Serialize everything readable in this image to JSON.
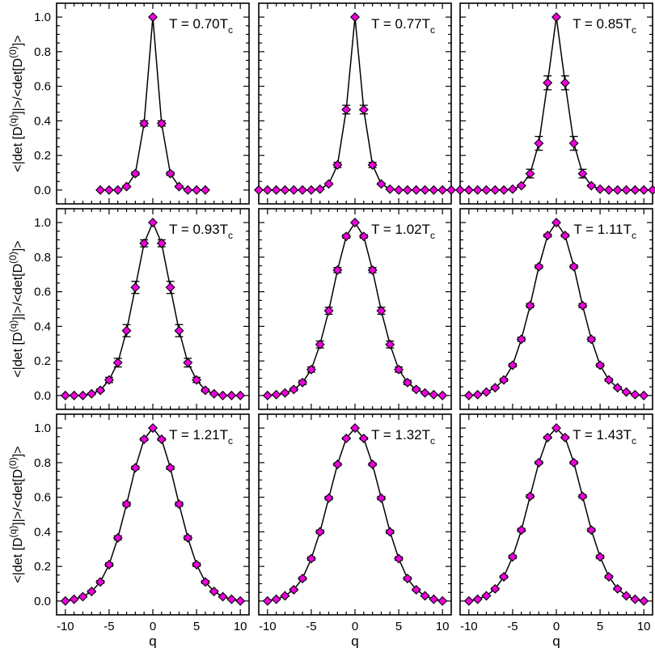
{
  "figure": {
    "xlabel": "q",
    "ylabel_parts": [
      "<|det [D",
      "(q)",
      "]|>/<det[D",
      "(0)",
      "]>"
    ]
  },
  "chart_data": [
    {
      "type": "line",
      "title_main": "T = 0.70T",
      "title_sub": "c",
      "xlim": [
        -11,
        11
      ],
      "ylim": [
        -0.08,
        1.08
      ],
      "x": [
        -6,
        -5,
        -4,
        -3,
        -2,
        -1,
        0,
        1,
        2,
        3,
        4,
        5,
        6
      ],
      "y": [
        0.0,
        0.0,
        0.0,
        0.02,
        0.095,
        0.385,
        1.0,
        0.385,
        0.095,
        0.02,
        0.0,
        0.0,
        0.0
      ],
      "err": [
        0.0,
        0.0,
        0.0,
        0.005,
        0.01,
        0.015,
        0.0,
        0.015,
        0.01,
        0.005,
        0.0,
        0.0,
        0.0
      ]
    },
    {
      "type": "line",
      "title_main": "T = 0.77T",
      "title_sub": "c",
      "xlim": [
        -11,
        11
      ],
      "ylim": [
        -0.08,
        1.08
      ],
      "x": [
        -11,
        -10,
        -9,
        -8,
        -7,
        -6,
        -5,
        -4,
        -3,
        -2,
        -1,
        0,
        1,
        2,
        3,
        4,
        5,
        6,
        7,
        8,
        9,
        10,
        11
      ],
      "y": [
        0.0,
        0.0,
        0.0,
        0.0,
        0.0,
        0.0,
        0.0,
        0.005,
        0.035,
        0.145,
        0.465,
        1.0,
        0.465,
        0.145,
        0.035,
        0.005,
        0.0,
        0.0,
        0.0,
        0.0,
        0.0,
        0.0,
        0.0
      ],
      "err": [
        0,
        0,
        0,
        0,
        0,
        0,
        0,
        0.003,
        0.005,
        0.015,
        0.025,
        0,
        0.025,
        0.015,
        0.005,
        0.003,
        0,
        0,
        0,
        0,
        0,
        0,
        0
      ]
    },
    {
      "type": "line",
      "title_main": "T = 0.85T",
      "title_sub": "c",
      "xlim": [
        -11,
        11
      ],
      "ylim": [
        -0.08,
        1.08
      ],
      "x": [
        -11,
        -10,
        -9,
        -8,
        -7,
        -6,
        -5,
        -4,
        -3,
        -2,
        -1,
        0,
        1,
        2,
        3,
        4,
        5,
        6,
        7,
        8,
        9,
        10,
        11
      ],
      "y": [
        0.0,
        0.0,
        0.0,
        0.0,
        0.0,
        0.0,
        0.005,
        0.025,
        0.095,
        0.27,
        0.62,
        1.0,
        0.62,
        0.27,
        0.095,
        0.025,
        0.005,
        0.0,
        0.0,
        0.0,
        0.0,
        0.0,
        0.0
      ],
      "err": [
        0,
        0,
        0,
        0,
        0,
        0,
        0.003,
        0.005,
        0.025,
        0.04,
        0.04,
        0,
        0.04,
        0.04,
        0.025,
        0.005,
        0.003,
        0,
        0,
        0,
        0,
        0,
        0
      ]
    },
    {
      "type": "line",
      "title_main": "T = 0.93T",
      "title_sub": "c",
      "xlim": [
        -11,
        11
      ],
      "ylim": [
        -0.08,
        1.08
      ],
      "x": [
        -10,
        -9,
        -8,
        -7,
        -6,
        -5,
        -4,
        -3,
        -2,
        -1,
        0,
        1,
        2,
        3,
        4,
        5,
        6,
        7,
        8,
        9,
        10
      ],
      "y": [
        0.0,
        0.0,
        0.0,
        0.01,
        0.03,
        0.09,
        0.19,
        0.375,
        0.625,
        0.88,
        1.0,
        0.88,
        0.625,
        0.375,
        0.19,
        0.09,
        0.03,
        0.01,
        0.0,
        0.0,
        0.0
      ],
      "err": [
        0,
        0,
        0,
        0.005,
        0.008,
        0.015,
        0.025,
        0.035,
        0.035,
        0.02,
        0,
        0.02,
        0.035,
        0.035,
        0.025,
        0.015,
        0.008,
        0.005,
        0,
        0,
        0
      ]
    },
    {
      "type": "line",
      "title_main": "T = 1.02T",
      "title_sub": "c",
      "xlim": [
        -11,
        11
      ],
      "ylim": [
        -0.08,
        1.08
      ],
      "x": [
        -10,
        -9,
        -8,
        -7,
        -6,
        -5,
        -4,
        -3,
        -2,
        -1,
        0,
        1,
        2,
        3,
        4,
        5,
        6,
        7,
        8,
        9,
        10
      ],
      "y": [
        0.0,
        0.005,
        0.015,
        0.035,
        0.075,
        0.15,
        0.295,
        0.49,
        0.725,
        0.92,
        1.0,
        0.92,
        0.725,
        0.49,
        0.295,
        0.15,
        0.075,
        0.035,
        0.015,
        0.005,
        0.0
      ],
      "err": [
        0,
        0.003,
        0.005,
        0.008,
        0.012,
        0.015,
        0.02,
        0.02,
        0.015,
        0.01,
        0,
        0.01,
        0.015,
        0.02,
        0.02,
        0.015,
        0.012,
        0.008,
        0.005,
        0.003,
        0
      ]
    },
    {
      "type": "line",
      "title_main": "T = 1.11T",
      "title_sub": "c",
      "xlim": [
        -11,
        11
      ],
      "ylim": [
        -0.08,
        1.08
      ],
      "x": [
        -10,
        -9,
        -8,
        -7,
        -6,
        -5,
        -4,
        -3,
        -2,
        -1,
        0,
        1,
        2,
        3,
        4,
        5,
        6,
        7,
        8,
        9,
        10
      ],
      "y": [
        0.0,
        0.005,
        0.02,
        0.045,
        0.09,
        0.175,
        0.325,
        0.52,
        0.745,
        0.925,
        1.0,
        0.925,
        0.745,
        0.52,
        0.325,
        0.175,
        0.09,
        0.045,
        0.02,
        0.005,
        0.0
      ],
      "err": [
        0,
        0.003,
        0.004,
        0.006,
        0.008,
        0.01,
        0.012,
        0.012,
        0.01,
        0.008,
        0,
        0.008,
        0.01,
        0.012,
        0.012,
        0.01,
        0.008,
        0.006,
        0.004,
        0.003,
        0
      ]
    },
    {
      "type": "line",
      "title_main": "T = 1.21T",
      "title_sub": "c",
      "xlim": [
        -11,
        11
      ],
      "ylim": [
        -0.08,
        1.08
      ],
      "x": [
        -10,
        -9,
        -8,
        -7,
        -6,
        -5,
        -4,
        -3,
        -2,
        -1,
        0,
        1,
        2,
        3,
        4,
        5,
        6,
        7,
        8,
        9,
        10
      ],
      "y": [
        0.0,
        0.01,
        0.025,
        0.055,
        0.11,
        0.21,
        0.365,
        0.56,
        0.77,
        0.935,
        1.0,
        0.935,
        0.77,
        0.56,
        0.365,
        0.21,
        0.11,
        0.055,
        0.025,
        0.01,
        0.0
      ],
      "err": [
        0,
        0.003,
        0.004,
        0.006,
        0.008,
        0.01,
        0.012,
        0.012,
        0.01,
        0.008,
        0,
        0.008,
        0.01,
        0.012,
        0.012,
        0.01,
        0.008,
        0.006,
        0.004,
        0.003,
        0
      ]
    },
    {
      "type": "line",
      "title_main": "T = 1.32T",
      "title_sub": "c",
      "xlim": [
        -11,
        11
      ],
      "ylim": [
        -0.08,
        1.08
      ],
      "x": [
        -10,
        -9,
        -8,
        -7,
        -6,
        -5,
        -4,
        -3,
        -2,
        -1,
        0,
        1,
        2,
        3,
        4,
        5,
        6,
        7,
        8,
        9,
        10
      ],
      "y": [
        0.0,
        0.01,
        0.03,
        0.065,
        0.13,
        0.245,
        0.4,
        0.595,
        0.79,
        0.94,
        1.0,
        0.94,
        0.79,
        0.595,
        0.4,
        0.245,
        0.13,
        0.065,
        0.03,
        0.01,
        0.0
      ],
      "err": [
        0,
        0.003,
        0.004,
        0.006,
        0.008,
        0.01,
        0.01,
        0.01,
        0.008,
        0.006,
        0,
        0.006,
        0.008,
        0.01,
        0.01,
        0.01,
        0.008,
        0.006,
        0.004,
        0.003,
        0
      ]
    },
    {
      "type": "line",
      "title_main": "T = 1.43T",
      "title_sub": "c",
      "xlim": [
        -11,
        11
      ],
      "ylim": [
        -0.08,
        1.08
      ],
      "x": [
        -10,
        -9,
        -8,
        -7,
        -6,
        -5,
        -4,
        -3,
        -2,
        -1,
        0,
        1,
        2,
        3,
        4,
        5,
        6,
        7,
        8,
        9,
        10
      ],
      "y": [
        0.0,
        0.01,
        0.03,
        0.07,
        0.14,
        0.255,
        0.41,
        0.605,
        0.8,
        0.945,
        1.0,
        0.945,
        0.8,
        0.605,
        0.41,
        0.255,
        0.14,
        0.07,
        0.03,
        0.01,
        0.0
      ],
      "err": [
        0,
        0.003,
        0.004,
        0.006,
        0.008,
        0.01,
        0.01,
        0.01,
        0.008,
        0.006,
        0,
        0.006,
        0.008,
        0.01,
        0.01,
        0.01,
        0.008,
        0.006,
        0.004,
        0.003,
        0
      ]
    }
  ],
  "axes": {
    "xticks": [
      -10,
      -5,
      0,
      5,
      10
    ],
    "xtick_labels": [
      "-10",
      "-5",
      "0",
      "5",
      "10"
    ],
    "yticks": [
      0.0,
      0.2,
      0.4,
      0.6,
      0.8,
      1.0
    ],
    "ytick_labels": [
      "0.0",
      "0.2",
      "0.4",
      "0.6",
      "0.8",
      "1.0"
    ]
  }
}
